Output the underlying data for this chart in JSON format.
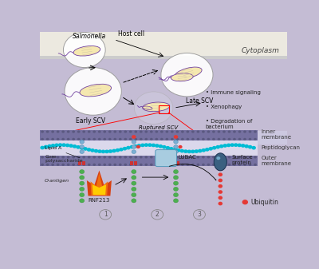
{
  "bg_color": "#c4bcd4",
  "bg_top": "#f0eeee",
  "cytoplasm_label": "Cytoplasm",
  "salmonella_label": "Salmonella",
  "host_cell_label": "Host cell",
  "early_scv_label": "Early SCV",
  "late_scv_label": "Late SCV",
  "ruptured_scv_label": "Ruptured SCV",
  "bullet_labels": [
    "Immune signaling",
    "Xenophagy",
    "Degradation of\nbacterium"
  ],
  "inner_membrane_label": "Inner\nmembrane",
  "peptidoglycan_label": "Peptidoglycan",
  "outer_membrane_label": "Outer\nmembrane",
  "lipid_a_label": "Lipid A",
  "core_poly_label": "Core\npolysaccharide",
  "o_antigen_label": "O-antigen",
  "rnf213_label": "RNF213",
  "lubac_label": "LUBAC",
  "surface_protein_label": "Surface\nprotein",
  "ubiquitin_label": "Ubiquitin",
  "membrane_color": "#7570a0",
  "membrane_dot_color": "#5a5880",
  "peptidoglycan_color": "#00bcd4",
  "green_dot_color": "#4caf50",
  "red_dot_color": "#e53935",
  "blue_dot_color": "#7bafd4",
  "circle_edge": "#999999",
  "bacterium_body": "#f5e8b0",
  "bacterium_outline": "#7040a0",
  "arrow_color": "#111111",
  "red_line_color": "#e53935",
  "num1": "1",
  "num2": "2",
  "num3": "3",
  "pg_bg_color": "#dbd8ec",
  "inner_mem_bg": "#ccc9e0"
}
